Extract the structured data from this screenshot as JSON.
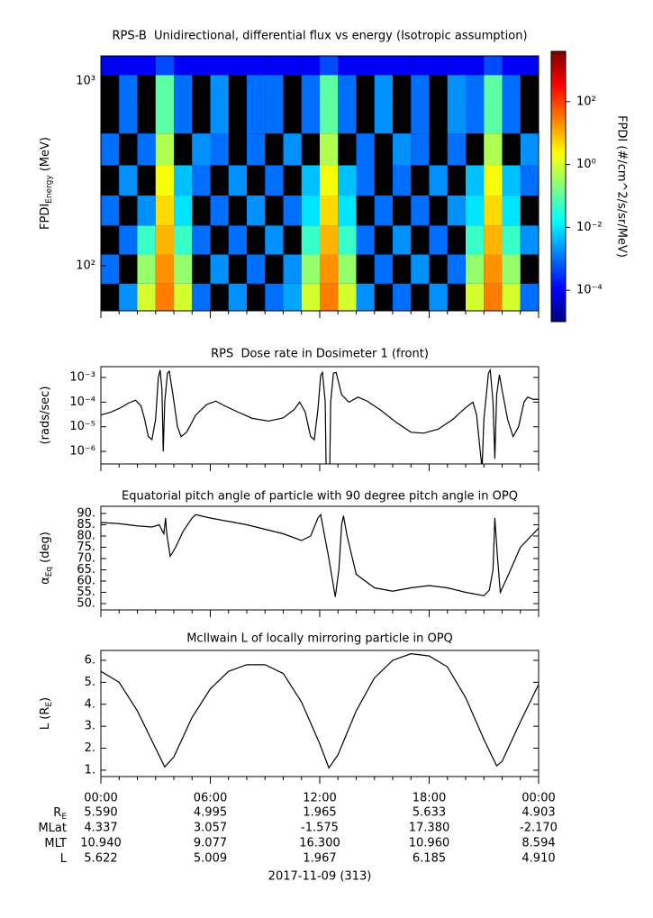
{
  "chart_data": [
    {
      "type": "heatmap",
      "title": "RPS-B  Unidirectional, differential flux vs energy (Isotropic assumption)",
      "ylabel": {
        "text": "FPDI",
        "sub": "Energy",
        "unit": "(MeV)"
      },
      "xlim": [
        0,
        24
      ],
      "xticks": [
        0,
        6,
        12,
        18,
        24
      ],
      "xminor": 1,
      "ylim": [
        57,
        1370
      ],
      "ylog": true,
      "yticks": [
        {
          "value": 100,
          "label": "10²"
        },
        {
          "value": 1000,
          "label": "10³"
        }
      ],
      "xbins": [
        0,
        1,
        2,
        3,
        4,
        5,
        6,
        7,
        8,
        9,
        10,
        11,
        12,
        13,
        14,
        15,
        16,
        17,
        18,
        19,
        20,
        21,
        22,
        23,
        24
      ],
      "ybins": [
        57,
        80,
        115,
        165,
        240,
        350,
        520,
        1080,
        1370
      ],
      "z": [
        [
          null,
          0.002,
          1,
          30,
          1,
          0.001,
          null,
          0.002,
          null,
          0.001,
          0.003,
          1,
          30,
          1,
          0.002,
          null,
          0.001,
          null,
          0.002,
          null,
          1,
          30,
          1,
          0.001
        ],
        [
          0.001,
          null,
          0.3,
          20,
          0.3,
          null,
          0.002,
          null,
          0.001,
          null,
          0.002,
          0.3,
          20,
          0.3,
          null,
          0.001,
          null,
          0.002,
          null,
          0.001,
          0.3,
          20,
          0.3,
          null
        ],
        [
          null,
          0.001,
          0.05,
          10,
          0.05,
          0.001,
          null,
          0.001,
          null,
          0.002,
          null,
          0.05,
          10,
          0.05,
          0.001,
          null,
          0.002,
          null,
          0.001,
          null,
          0.05,
          10,
          0.05,
          0.002
        ],
        [
          0.001,
          null,
          0.002,
          5,
          0.01,
          null,
          0.001,
          null,
          0.002,
          null,
          0.001,
          0.01,
          5,
          0.01,
          null,
          0.001,
          null,
          0.001,
          null,
          0.002,
          0.01,
          5,
          0.01,
          null
        ],
        [
          null,
          0.002,
          null,
          2,
          0.005,
          0.001,
          null,
          0.002,
          null,
          0.001,
          null,
          0.005,
          2,
          0.005,
          0.001,
          null,
          0.001,
          null,
          0.002,
          null,
          0.005,
          2,
          0.005,
          0.001
        ],
        [
          0.001,
          null,
          0.001,
          0.5,
          null,
          0.002,
          0.001,
          null,
          0.001,
          null,
          0.002,
          null,
          0.5,
          null,
          0.001,
          null,
          0.002,
          0.001,
          null,
          0.001,
          null,
          0.5,
          null,
          0.002
        ],
        [
          null,
          0.001,
          null,
          0.1,
          0.001,
          null,
          0.002,
          null,
          0.001,
          0.001,
          null,
          0.001,
          0.1,
          0.001,
          null,
          0.002,
          null,
          0.001,
          null,
          0.002,
          0.001,
          0.1,
          0.001,
          null
        ],
        [
          0.0001,
          0.0001,
          0.0001,
          0.0005,
          0.0001,
          0.0001,
          0.0001,
          0.0001,
          0.0001,
          0.0001,
          0.0001,
          0.0001,
          0.0005,
          0.0001,
          0.0001,
          0.0001,
          0.0001,
          0.0001,
          0.0001,
          0.0001,
          0.0001,
          0.0005,
          0.0001,
          0.0001
        ]
      ],
      "zlim": [
        1e-05,
        4000
      ],
      "colormap": "jet",
      "zticks": [
        {
          "value": 0.0001,
          "label": "10⁻⁴"
        },
        {
          "value": 0.01,
          "label": "10⁻²"
        },
        {
          "value": 1,
          "label": "10⁰"
        },
        {
          "value": 100,
          "label": "10²"
        }
      ],
      "zlabel": "FPDI (#/cm^2/s/sr/MeV)"
    },
    {
      "type": "line",
      "title": "RPS  Dose rate in Dosimeter 1 (front)",
      "ylabel": {
        "text": "(rads/sec)"
      },
      "xlim": [
        0,
        24
      ],
      "xticks": [
        0,
        6,
        12,
        18,
        24
      ],
      "xminor": 1,
      "ylim": [
        3.1e-07,
        0.00275
      ],
      "ylog": true,
      "yticks": [
        {
          "value": 1e-06,
          "label": "10⁻⁶"
        },
        {
          "value": 1e-05,
          "label": "10⁻⁵"
        },
        {
          "value": 0.0001,
          "label": "10⁻⁴"
        },
        {
          "value": 0.001,
          "label": "10⁻³"
        }
      ],
      "color": "#000000",
      "x": [
        0,
        0.5,
        1,
        1.5,
        1.9,
        2.2,
        2.4,
        2.6,
        2.8,
        3.0,
        3.15,
        3.25,
        3.35,
        3.42,
        3.5,
        3.65,
        3.75,
        3.95,
        4.2,
        4.4,
        4.7,
        5.2,
        5.8,
        6.3,
        6.8,
        7.5,
        8.3,
        9.2,
        10,
        10.6,
        10.9,
        11.2,
        11.5,
        11.7,
        11.9,
        12.05,
        12.15,
        12.3,
        12.35,
        12.55,
        12.6,
        12.75,
        12.9,
        13.2,
        13.6,
        14.1,
        14.6,
        15.3,
        16.2,
        17,
        17.7,
        18.5,
        19.3,
        20,
        20.4,
        20.6,
        20.8,
        20.9,
        21,
        21.25,
        21.35,
        21.5,
        21.6,
        21.7,
        21.85,
        22.0,
        22.3,
        22.6,
        22.9,
        23.2,
        23.4,
        23.7,
        24
      ],
      "values": [
        3e-05,
        3.8e-05,
        5.5e-05,
        9e-05,
        0.00012,
        7e-05,
        2e-05,
        4e-06,
        3e-06,
        2e-05,
        0.001,
        0.002,
        0.0003,
        1e-06,
        0.0001,
        0.0015,
        0.0018,
        0.0002,
        1e-05,
        4e-06,
        6e-06,
        3e-05,
        8e-05,
        0.00011,
        7e-05,
        4e-05,
        2.2e-05,
        1.7e-05,
        2.3e-05,
        5e-05,
        0.0001,
        4e-05,
        4e-06,
        3e-06,
        5e-05,
        0.0012,
        0.0016,
        0.0001,
        2e-07,
        2e-07,
        0.0001,
        0.0015,
        0.0016,
        0.0002,
        0.0001,
        0.00016,
        0.00011,
        5e-05,
        1.5e-05,
        6e-06,
        5.5e-06,
        8e-06,
        2e-05,
        6e-05,
        0.0001,
        3e-05,
        1e-06,
        2e-07,
        2e-05,
        0.0015,
        0.002,
        0.0001,
        5e-07,
        0.0002,
        0.0013,
        0.0003,
        2e-05,
        4e-06,
        1e-05,
        0.0001,
        0.00016,
        0.00013,
        0.00013
      ]
    },
    {
      "type": "line",
      "title": "Equatorial pitch angle of particle with 90 degree pitch angle in OPQ",
      "ylabel": {
        "text": "α",
        "sub": "Eq",
        "unit": "(deg)"
      },
      "xlim": [
        0,
        24
      ],
      "xticks": [
        0,
        6,
        12,
        18,
        24
      ],
      "xminor": 1,
      "ylim": [
        47.2,
        93.2
      ],
      "yticks": [
        {
          "value": 50,
          "label": "50."
        },
        {
          "value": 55,
          "label": "55."
        },
        {
          "value": 60,
          "label": "60."
        },
        {
          "value": 65,
          "label": "65."
        },
        {
          "value": 70,
          "label": "70."
        },
        {
          "value": 75,
          "label": "75."
        },
        {
          "value": 80,
          "label": "80."
        },
        {
          "value": 85,
          "label": "85."
        },
        {
          "value": 90,
          "label": "90."
        }
      ],
      "color": "#000000",
      "x": [
        0,
        1,
        2,
        2.8,
        3.2,
        3.45,
        3.55,
        3.6,
        3.65,
        3.8,
        4.1,
        4.5,
        5,
        5.2,
        6,
        8,
        10,
        11,
        11.5,
        11.9,
        12.05,
        12.5,
        12.85,
        13.05,
        13.2,
        13.3,
        13.5,
        14,
        15,
        16,
        17,
        18,
        19,
        20,
        21,
        21.3,
        21.5,
        21.6,
        21.75,
        21.9,
        22.3,
        23,
        24
      ],
      "values": [
        86,
        85.5,
        84.5,
        84,
        85,
        81,
        88,
        82,
        79,
        71,
        75,
        82,
        88,
        89.5,
        88,
        85,
        81,
        78,
        80,
        88,
        89.5,
        70,
        53,
        65,
        85,
        89,
        80,
        63,
        57,
        55.5,
        57,
        58,
        57,
        55,
        53.5,
        56,
        65,
        88,
        70,
        55,
        62,
        75,
        83.5
      ]
    },
    {
      "type": "line",
      "title": "McIlwain L of locally mirroring particle in OPQ",
      "ylabel": {
        "text": "L (R",
        "sub": "E",
        "unit": ")"
      },
      "xlim": [
        0,
        24
      ],
      "xminor": 1,
      "xticks": [
        {
          "value": 0,
          "label": "00:00"
        },
        {
          "value": 6,
          "label": "06:00"
        },
        {
          "value": 12,
          "label": "12:00"
        },
        {
          "value": 18,
          "label": "18:00"
        },
        {
          "value": 24,
          "label": "00:00"
        }
      ],
      "ylim": [
        0.71,
        6.45
      ],
      "yticks": [
        {
          "value": 1,
          "label": "1."
        },
        {
          "value": 2,
          "label": "2."
        },
        {
          "value": 3,
          "label": "3."
        },
        {
          "value": 4,
          "label": "4."
        },
        {
          "value": 5,
          "label": "5."
        },
        {
          "value": 6,
          "label": "6."
        }
      ],
      "color": "#000000",
      "x": [
        0,
        1,
        2,
        3,
        3.5,
        4,
        5,
        6,
        7,
        8,
        9,
        10,
        11,
        12,
        12.5,
        13,
        14,
        15,
        16,
        17,
        18,
        19,
        20,
        21,
        21.7,
        22,
        23,
        24
      ],
      "values": [
        5.5,
        5.0,
        3.7,
        2.0,
        1.15,
        1.6,
        3.4,
        4.7,
        5.5,
        5.8,
        5.8,
        5.4,
        4.1,
        2.2,
        1.1,
        1.7,
        3.7,
        5.2,
        6.0,
        6.3,
        6.2,
        5.7,
        4.3,
        2.4,
        1.2,
        1.4,
        3.2,
        4.9
      ]
    }
  ],
  "ephemeris": {
    "rows": [
      {
        "label": "R",
        "sub": "E",
        "values": [
          "5.590",
          "4.995",
          "1.965",
          "5.633",
          "4.903"
        ]
      },
      {
        "label": "MLat",
        "values": [
          "4.337",
          "3.057",
          "-1.575",
          "17.380",
          "-2.170"
        ]
      },
      {
        "label": "MLT",
        "values": [
          "10.940",
          "9.077",
          "16.300",
          "10.960",
          "8.594"
        ]
      },
      {
        "label": "L",
        "values": [
          "5.622",
          "5.009",
          "1.967",
          "6.185",
          "4.910"
        ]
      }
    ],
    "date": "2017-11-09 (313)"
  }
}
